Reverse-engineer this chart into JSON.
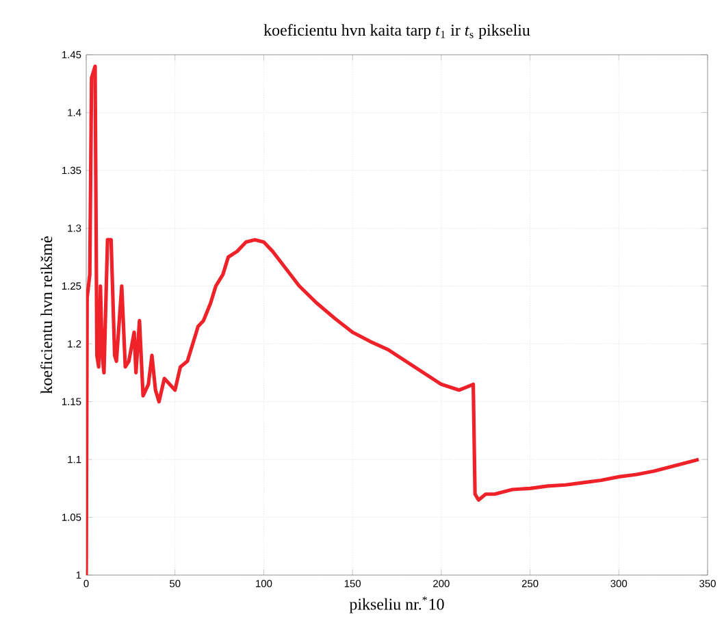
{
  "chart_data": {
    "type": "line",
    "title": "koeficientu hvn kaita tarp *t*$_{1}$ ir *t*$_{s}$ pikseliu",
    "xlabel": "pikseliu nr.$^{*}$10",
    "ylabel": "koeficientu hvn reikšmė",
    "x": [
      0,
      0.5,
      2,
      3,
      5,
      6,
      7,
      8,
      9,
      10,
      12,
      14,
      16,
      17,
      20,
      22,
      24,
      27,
      28,
      30,
      32,
      35,
      37,
      39,
      41,
      44,
      47,
      50,
      53,
      57,
      60,
      63,
      66,
      70,
      73,
      77,
      80,
      85,
      90,
      95,
      100,
      105,
      110,
      120,
      130,
      140,
      150,
      160,
      170,
      180,
      190,
      200,
      210,
      215,
      218,
      219,
      221,
      225,
      230,
      240,
      250,
      260,
      270,
      280,
      290,
      300,
      310,
      320,
      330,
      340,
      345
    ],
    "series": [
      {
        "color": "#ee2228",
        "values": [
          1.0,
          1.24,
          1.26,
          1.43,
          1.44,
          1.19,
          1.18,
          1.25,
          1.19,
          1.175,
          1.29,
          1.29,
          1.19,
          1.185,
          1.25,
          1.18,
          1.185,
          1.21,
          1.175,
          1.22,
          1.155,
          1.165,
          1.19,
          1.16,
          1.15,
          1.17,
          1.165,
          1.16,
          1.18,
          1.185,
          1.2,
          1.215,
          1.22,
          1.235,
          1.25,
          1.26,
          1.275,
          1.28,
          1.288,
          1.29,
          1.288,
          1.28,
          1.27,
          1.25,
          1.235,
          1.222,
          1.21,
          1.202,
          1.195,
          1.185,
          1.175,
          1.165,
          1.16,
          1.163,
          1.165,
          1.07,
          1.065,
          1.07,
          1.07,
          1.074,
          1.075,
          1.077,
          1.078,
          1.08,
          1.082,
          1.085,
          1.087,
          1.09,
          1.094,
          1.098,
          1.1
        ]
      }
    ],
    "xlim": [
      0,
      350
    ],
    "ylim": [
      1,
      1.45
    ],
    "xticks": [
      0,
      50,
      100,
      150,
      200,
      250,
      300,
      350
    ],
    "yticks": [
      1,
      1.05,
      1.1,
      1.15,
      1.2,
      1.25,
      1.3,
      1.35,
      1.4,
      1.45
    ],
    "grid": true,
    "marker": "none",
    "line_style": "solid"
  }
}
